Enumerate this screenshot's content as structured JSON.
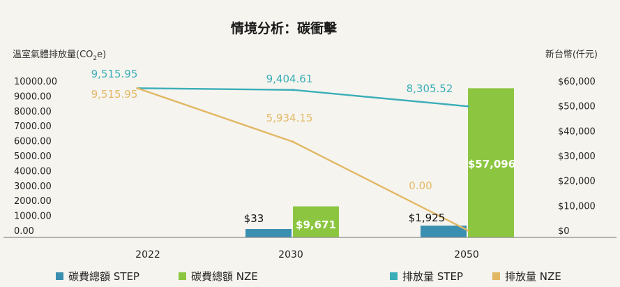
{
  "chart_data": {
    "type": "bar+line",
    "title": "情境分析：碳衝擊",
    "left_axis_label": "溫室氣體排放量(CO",
    "left_axis_label_sub": "2",
    "left_axis_label_end": "e)",
    "right_axis_label": "新台幣(仟元)",
    "categories": [
      "2022",
      "2030",
      "2050"
    ],
    "left_ticks": [
      "10000.00",
      "9000.00",
      "8000.00",
      "7000.00",
      "6000.00",
      "5000.00",
      "4000.00",
      "3000.00",
      "2000.00",
      "1000.00",
      "0.00"
    ],
    "right_ticks": [
      "$60,000",
      "$50,000",
      "$40,000",
      "$30,000",
      "$20,000",
      "$10,000",
      "$0"
    ],
    "ylim_left": [
      0,
      10000
    ],
    "ylim_right": [
      0,
      60000
    ],
    "bar_series": [
      {
        "name": "碳費總額 STEP",
        "color": "#3a8fb0",
        "values": [
          0,
          33,
          1925
        ],
        "labels": [
          "",
          "$33",
          "$1,925"
        ]
      },
      {
        "name": "碳費總額 NZE",
        "color": "#8cc641",
        "values": [
          0,
          9671,
          57096
        ],
        "labels": [
          "",
          "$9,671",
          "$57,096"
        ]
      }
    ],
    "line_series": [
      {
        "name": "排放量 STEP",
        "color": "#3aaeb8",
        "values": [
          9515.95,
          9404.61,
          8305.52
        ],
        "labels": [
          "9,515.95",
          "9,404.61",
          "8,305.52"
        ]
      },
      {
        "name": "排放量 NZE",
        "color": "#e2b865",
        "values": [
          9515.95,
          5934.15,
          0
        ],
        "labels": [
          "9,515.95",
          "5,934.15",
          "0.00"
        ]
      }
    ],
    "legend": [
      {
        "label": "碳費總額 STEP",
        "color": "#3a8fb0"
      },
      {
        "label": "碳費總額 NZE",
        "color": "#8cc641"
      },
      {
        "label": "排放量 STEP",
        "color": "#3aaeb8"
      },
      {
        "label": "排放量 NZE",
        "color": "#e2b865"
      }
    ],
    "legend_position": "bottom"
  }
}
